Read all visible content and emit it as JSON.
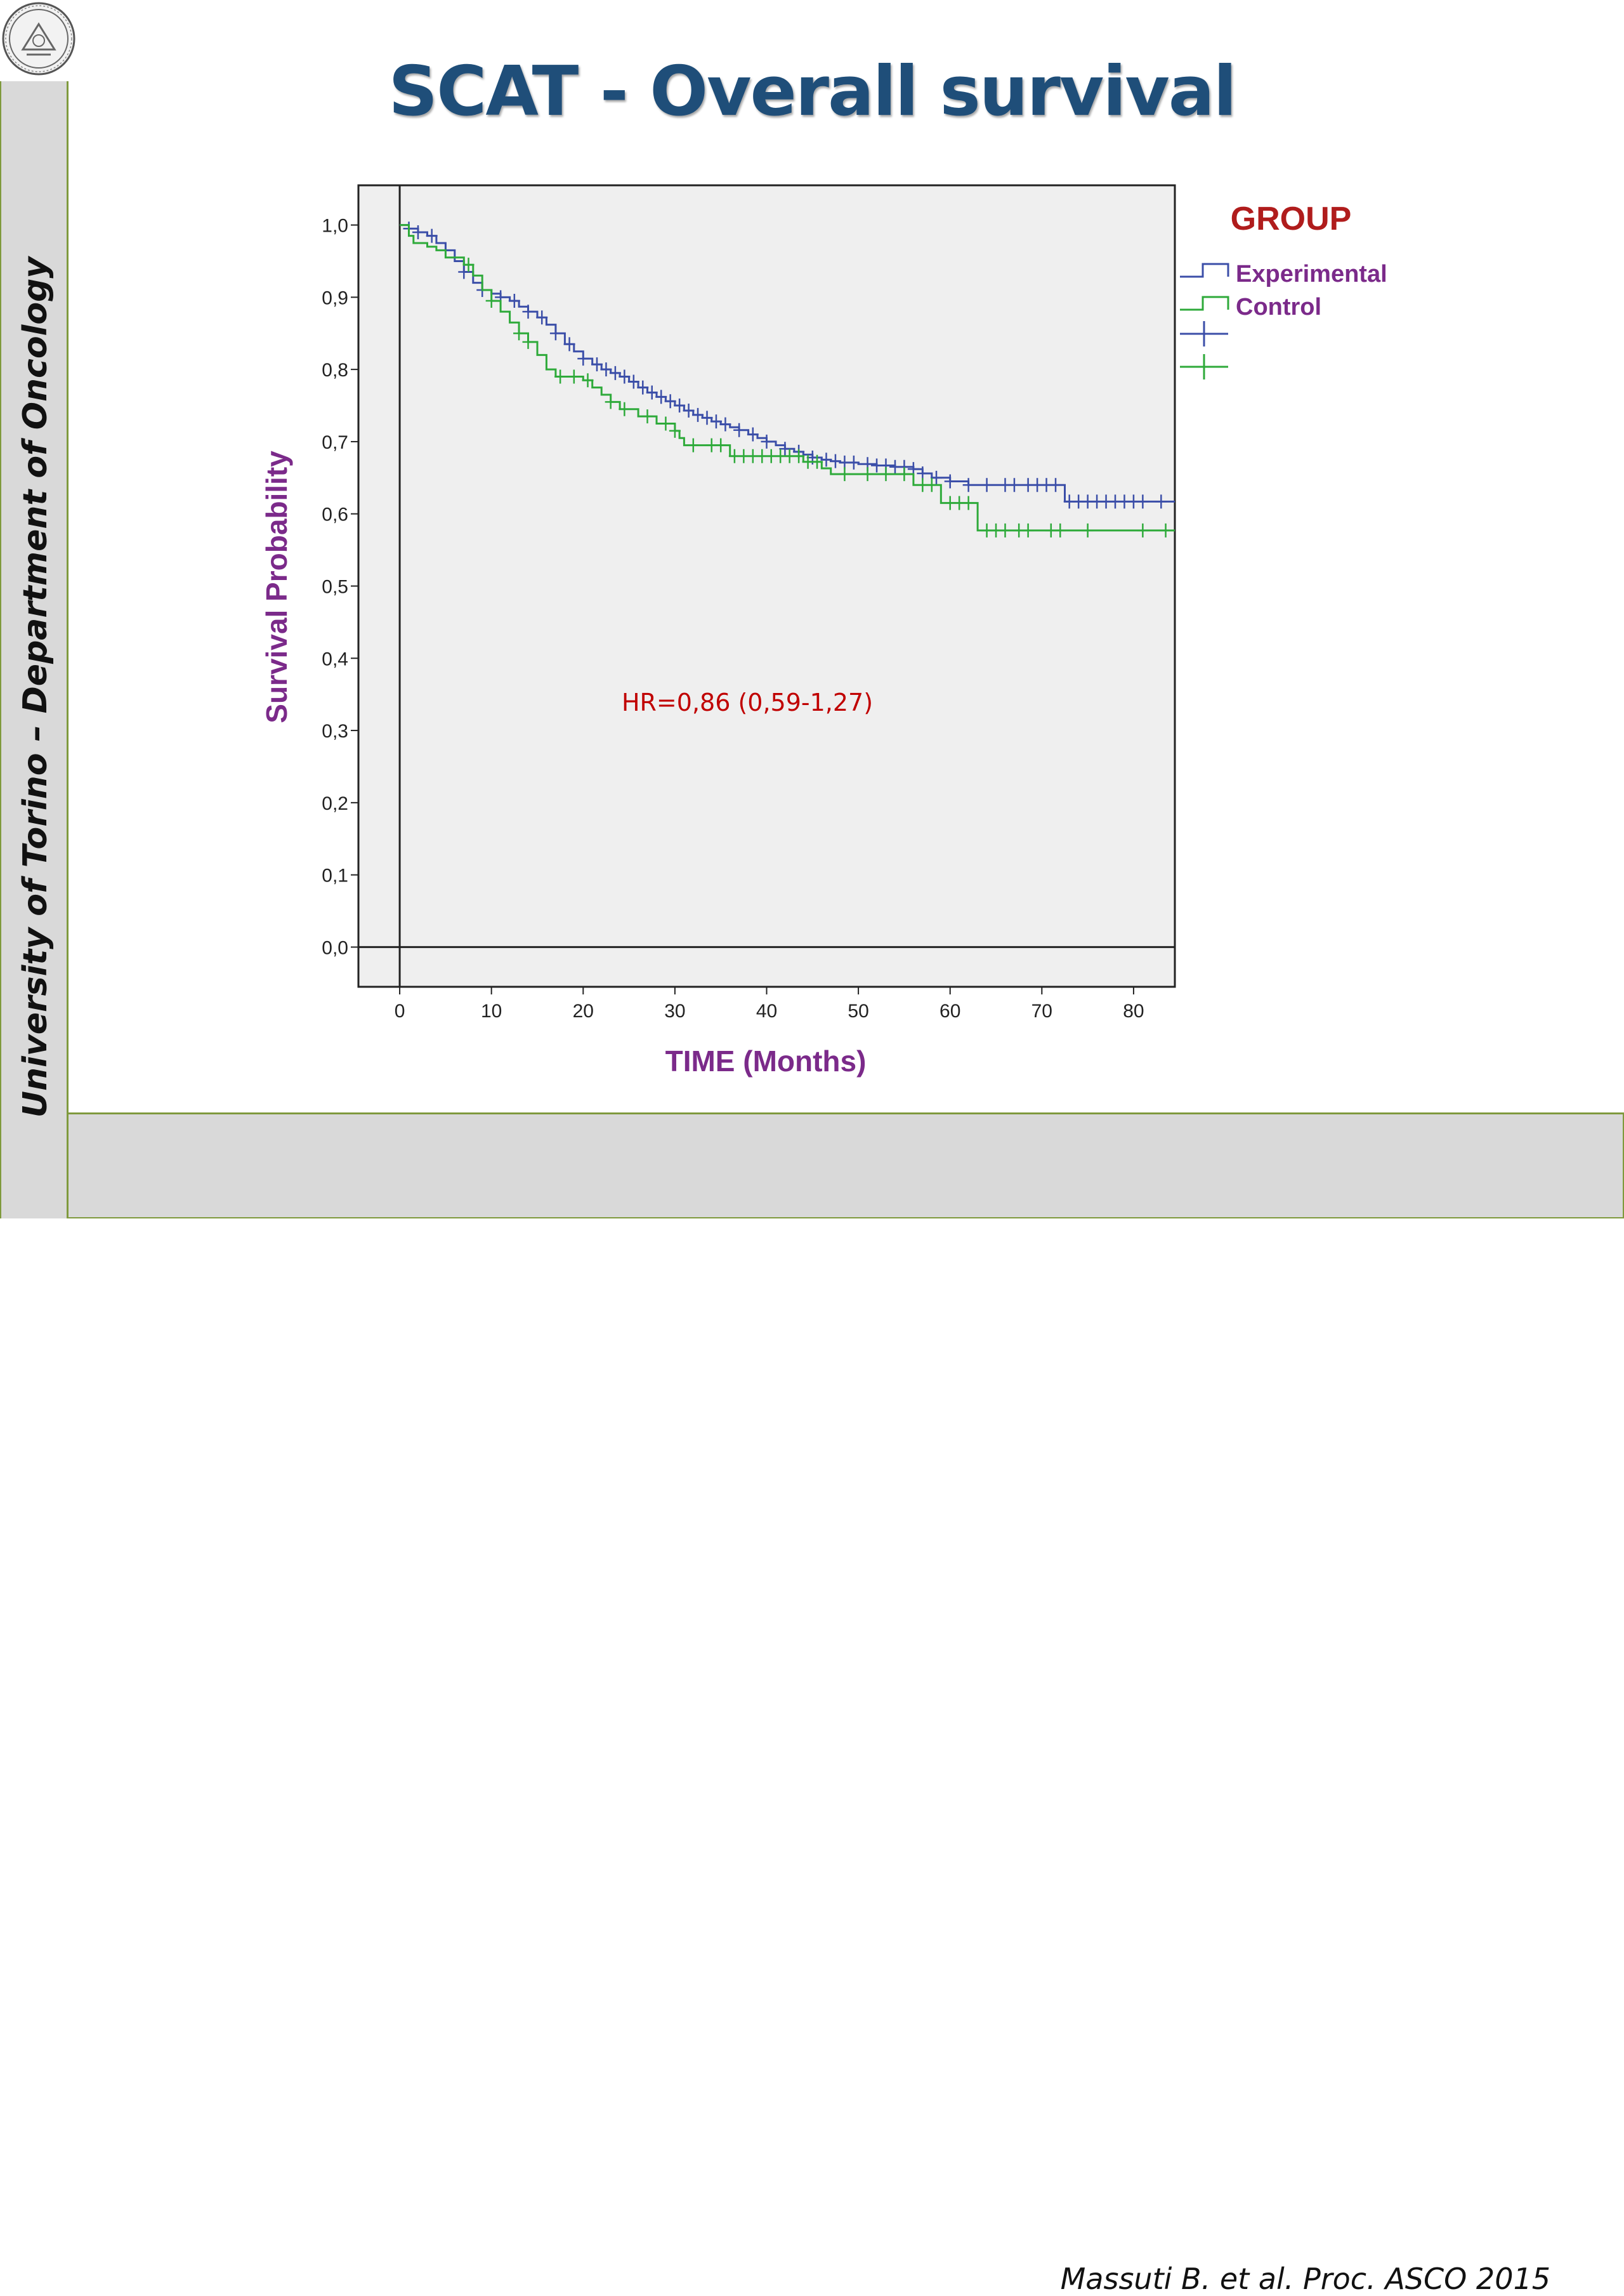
{
  "slide": {
    "title": "SCAT - Overall survival",
    "sidebar_text": "University of Torino – Department of Oncology",
    "citation": "Massuti B. et al. Proc. ASCO 2015",
    "logo": "university-seal"
  },
  "colors": {
    "title": "#1f4e79",
    "sidebar_border": "#7f9a3d",
    "experimental": "#3b4ea8",
    "control": "#2eaa3a",
    "axis_label": "#7b2a8a",
    "annotation": "#c00000",
    "plot_bg": "#efefef"
  },
  "chart_data": {
    "type": "line",
    "subtype": "kaplan-meier",
    "xlabel": "TIME (Months)",
    "ylabel": "Survival Probability",
    "xlim": [
      -4.5,
      84.5
    ],
    "ylim": [
      -0.055,
      1.055
    ],
    "xticks": [
      0,
      10,
      20,
      30,
      40,
      50,
      60,
      70,
      80
    ],
    "xtick_labels": [
      "0",
      "10",
      "20",
      "30",
      "40",
      "50",
      "60",
      "70",
      "80"
    ],
    "yticks": [
      0,
      0.1,
      0.2,
      0.3,
      0.4,
      0.5,
      0.6,
      0.7,
      0.8,
      0.9,
      1.0
    ],
    "ytick_labels": [
      "0,0",
      "0,1",
      "0,2",
      "0,3",
      "0,4",
      "0,5",
      "0,6",
      "0,7",
      "0,8",
      "0,9",
      "1,0"
    ],
    "grid": false,
    "legend": {
      "title": "GROUP",
      "position": "right",
      "entries": [
        "Experimental",
        "Control"
      ]
    },
    "annotation": "HR=0,86 (0,59-1,27)",
    "series": [
      {
        "name": "Experimental",
        "color": "#3b4ea8",
        "points": [
          [
            0,
            1.0
          ],
          [
            1,
            0.995
          ],
          [
            2,
            0.99
          ],
          [
            3,
            0.985
          ],
          [
            4,
            0.975
          ],
          [
            5,
            0.965
          ],
          [
            6,
            0.95
          ],
          [
            7,
            0.935
          ],
          [
            8,
            0.92
          ],
          [
            9,
            0.91
          ],
          [
            10,
            0.905
          ],
          [
            11,
            0.9
          ],
          [
            12,
            0.895
          ],
          [
            13,
            0.887
          ],
          [
            14,
            0.88
          ],
          [
            15,
            0.872
          ],
          [
            16,
            0.862
          ],
          [
            17,
            0.85
          ],
          [
            18,
            0.835
          ],
          [
            19,
            0.825
          ],
          [
            20,
            0.815
          ],
          [
            21,
            0.807
          ],
          [
            22,
            0.8
          ],
          [
            23,
            0.795
          ],
          [
            24,
            0.79
          ],
          [
            25,
            0.783
          ],
          [
            26,
            0.775
          ],
          [
            27,
            0.768
          ],
          [
            28,
            0.762
          ],
          [
            29,
            0.756
          ],
          [
            30,
            0.75
          ],
          [
            31,
            0.743
          ],
          [
            32,
            0.737
          ],
          [
            33,
            0.733
          ],
          [
            34,
            0.728
          ],
          [
            35,
            0.724
          ],
          [
            36,
            0.72
          ],
          [
            37,
            0.716
          ],
          [
            38,
            0.71
          ],
          [
            39,
            0.705
          ],
          [
            40,
            0.7
          ],
          [
            41,
            0.695
          ],
          [
            42,
            0.69
          ],
          [
            43,
            0.686
          ],
          [
            44,
            0.682
          ],
          [
            45,
            0.678
          ],
          [
            46,
            0.675
          ],
          [
            47,
            0.673
          ],
          [
            48,
            0.671
          ],
          [
            50,
            0.669
          ],
          [
            52,
            0.667
          ],
          [
            54,
            0.665
          ],
          [
            56,
            0.662
          ],
          [
            57,
            0.656
          ],
          [
            58,
            0.65
          ],
          [
            60,
            0.645
          ],
          [
            62,
            0.64
          ],
          [
            65,
            0.64
          ],
          [
            72.5,
            0.64
          ],
          [
            72.5,
            0.617
          ],
          [
            84.5,
            0.617
          ]
        ],
        "censored": [
          1,
          2,
          3.5,
          5,
          7,
          9,
          11,
          12.5,
          14,
          15.5,
          17,
          18.5,
          20,
          21.5,
          22.5,
          23.5,
          24.5,
          25.5,
          26.5,
          27.5,
          28.5,
          29.5,
          30.5,
          31.5,
          32.5,
          33.5,
          34.5,
          35.5,
          37,
          38.5,
          40,
          42,
          43.5,
          45,
          46.5,
          47.5,
          48.5,
          49.5,
          51,
          52,
          53,
          54,
          55,
          56,
          57,
          58.5,
          60,
          62,
          64,
          66,
          67,
          68.5,
          69.5,
          70.5,
          71.5,
          73,
          74,
          75,
          76,
          77,
          78,
          79,
          80,
          81,
          83
        ]
      },
      {
        "name": "Control",
        "color": "#2eaa3a",
        "points": [
          [
            0,
            1.0
          ],
          [
            1,
            0.985
          ],
          [
            1.5,
            0.975
          ],
          [
            3,
            0.97
          ],
          [
            4,
            0.965
          ],
          [
            5,
            0.955
          ],
          [
            7,
            0.945
          ],
          [
            8,
            0.93
          ],
          [
            9,
            0.91
          ],
          [
            10,
            0.895
          ],
          [
            11,
            0.88
          ],
          [
            12,
            0.865
          ],
          [
            13,
            0.85
          ],
          [
            14,
            0.838
          ],
          [
            15,
            0.82
          ],
          [
            16,
            0.8
          ],
          [
            17,
            0.79
          ],
          [
            20,
            0.785
          ],
          [
            21,
            0.775
          ],
          [
            22,
            0.765
          ],
          [
            23,
            0.755
          ],
          [
            24,
            0.745
          ],
          [
            26,
            0.735
          ],
          [
            28,
            0.725
          ],
          [
            30,
            0.715
          ],
          [
            30.5,
            0.705
          ],
          [
            31,
            0.695
          ],
          [
            36,
            0.69
          ],
          [
            36,
            0.68
          ],
          [
            44,
            0.68
          ],
          [
            44,
            0.672
          ],
          [
            46,
            0.663
          ],
          [
            47,
            0.655
          ],
          [
            56,
            0.655
          ],
          [
            56,
            0.64
          ],
          [
            59,
            0.628
          ],
          [
            59,
            0.615
          ],
          [
            63,
            0.6
          ],
          [
            63,
            0.577
          ],
          [
            84.5,
            0.577
          ]
        ],
        "censored": [
          7.5,
          10,
          13,
          14,
          17.5,
          19,
          20.5,
          23,
          24.5,
          27,
          29,
          30,
          32,
          34,
          35,
          36.5,
          37.5,
          38.5,
          39.5,
          40.5,
          41.5,
          42.5,
          43.5,
          44.5,
          45.5,
          48.5,
          51,
          53,
          55,
          57,
          58,
          60,
          61,
          62,
          64,
          65,
          66,
          67.5,
          68.5,
          71,
          72,
          75,
          81,
          83.5
        ]
      }
    ]
  }
}
